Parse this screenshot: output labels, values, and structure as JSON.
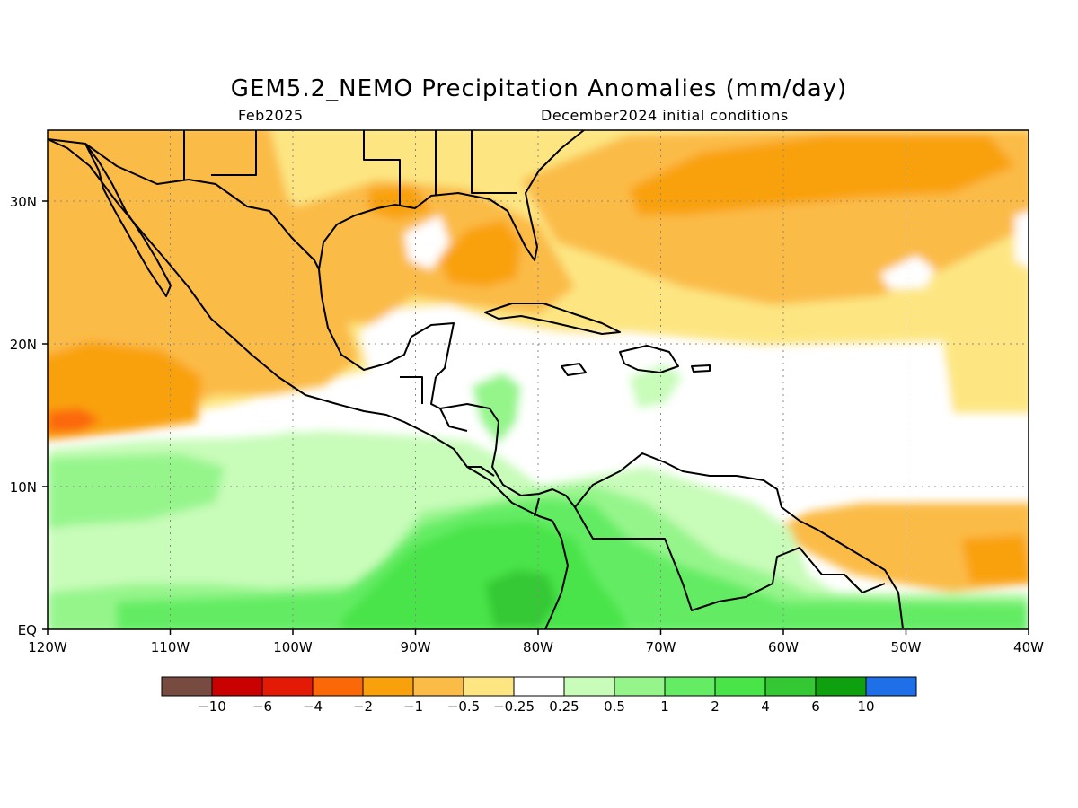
{
  "header": {
    "title": "GEM5.2_NEMO Precipitation Anomalies (mm/day)",
    "valid_month": "Feb2025",
    "init_conditions": "December2024 initial conditions"
  },
  "map": {
    "region": "Central America / Caribbean",
    "lon_range": [
      -120,
      -40
    ],
    "lat_range": [
      0,
      35
    ],
    "gridlines": true,
    "x_ticks": [
      "120W",
      "110W",
      "100W",
      "90W",
      "80W",
      "70W",
      "60W",
      "50W",
      "40W"
    ],
    "y_ticks": [
      "EQ",
      "10N",
      "20N",
      "30N"
    ],
    "colors": {
      "dry_light": "#fde682",
      "dry_mid": "#fbbb47",
      "dry_strong": "#f9a10a",
      "dry_stronger": "#fb6808",
      "neutral": "#ffffff",
      "wet_light": "#c8fcb9",
      "wet_mid": "#95f58b",
      "wet_strong": "#64ec64",
      "wet_stronger": "#48e448",
      "wet_strongest": "#34c934",
      "coastline": "#000000"
    }
  },
  "colorbar": {
    "labels": [
      "−10",
      "−6",
      "−4",
      "−2",
      "−1",
      "−0.5",
      "−0.25",
      "0.25",
      "0.5",
      "1",
      "2",
      "4",
      "6",
      "10"
    ],
    "colors": [
      "#774b3f",
      "#c90101",
      "#e21a06",
      "#fb6808",
      "#f9a10a",
      "#fbbb47",
      "#fde682",
      "#ffffff",
      "#c8fcb9",
      "#95f58b",
      "#64ec64",
      "#48e448",
      "#34c934",
      "#0fa00f",
      "#1e6fe8"
    ]
  }
}
